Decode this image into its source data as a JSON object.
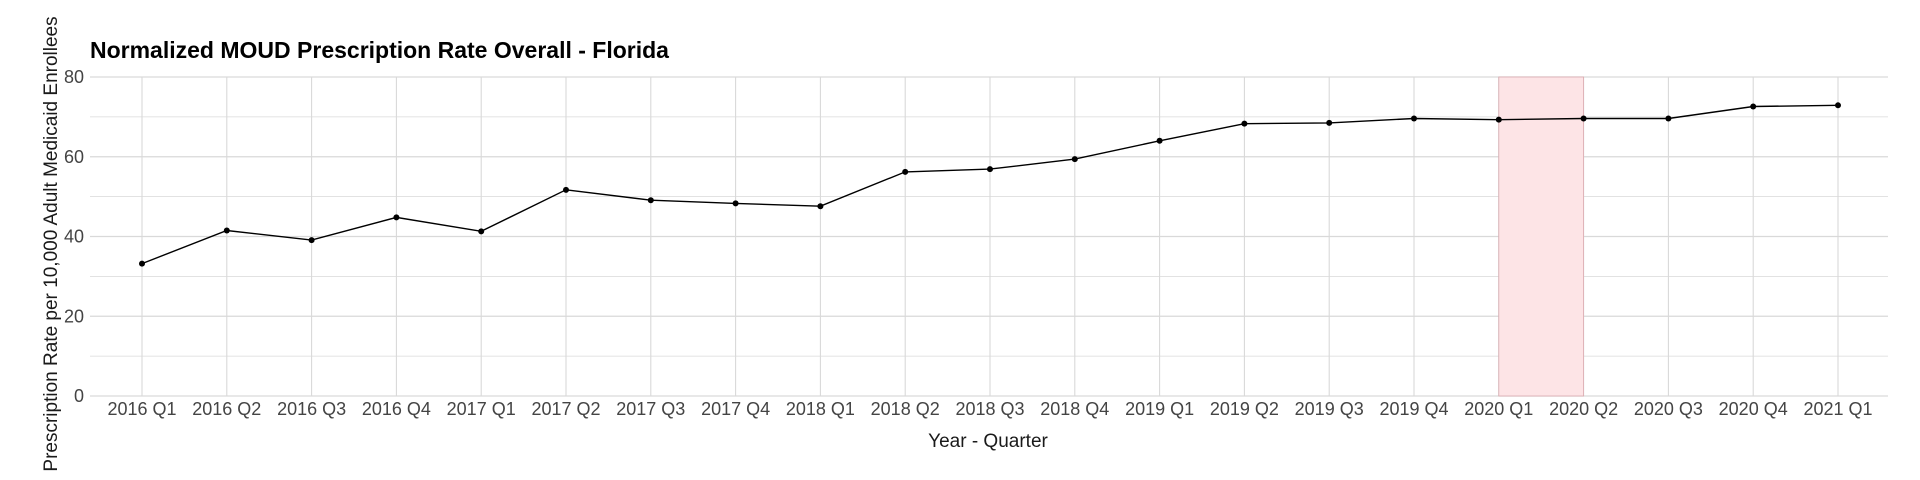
{
  "chart_data": {
    "type": "line",
    "title": "Normalized MOUD Prescription Rate Overall - Florida",
    "xlabel": "Year - Quarter",
    "ylabel": "Prescription Rate per 10,000 Adult Medicaid Enrollees",
    "ylim": [
      0,
      80
    ],
    "yticks": [
      0,
      20,
      40,
      60,
      80
    ],
    "grid": true,
    "legend": "none",
    "categories": [
      "2016 Q1",
      "2016 Q2",
      "2016 Q3",
      "2016 Q4",
      "2017 Q1",
      "2017 Q2",
      "2017 Q3",
      "2017 Q4",
      "2018 Q1",
      "2018 Q2",
      "2018 Q3",
      "2018 Q4",
      "2019 Q1",
      "2019 Q2",
      "2019 Q3",
      "2019 Q4",
      "2020 Q1",
      "2020 Q2",
      "2020 Q3",
      "2020 Q4",
      "2021 Q1"
    ],
    "series": [
      {
        "values": [
          33.2,
          41.5,
          39.1,
          44.8,
          41.3,
          51.7,
          49.1,
          48.3,
          47.6,
          56.2,
          56.9,
          59.4,
          64.0,
          68.3,
          68.5,
          69.6,
          69.3,
          69.6,
          69.6,
          72.6,
          72.9
        ],
        "color": "#000000"
      }
    ],
    "highlight": {
      "from": "2020 Q1",
      "to": "2020 Q2",
      "color": "#fde4e6",
      "border_color": "#d9a9ae"
    },
    "colors": {
      "grid": "#d9d9d9",
      "tick_text": "#444444",
      "axis_title": "#1a1a1a",
      "line": "#000000"
    }
  }
}
